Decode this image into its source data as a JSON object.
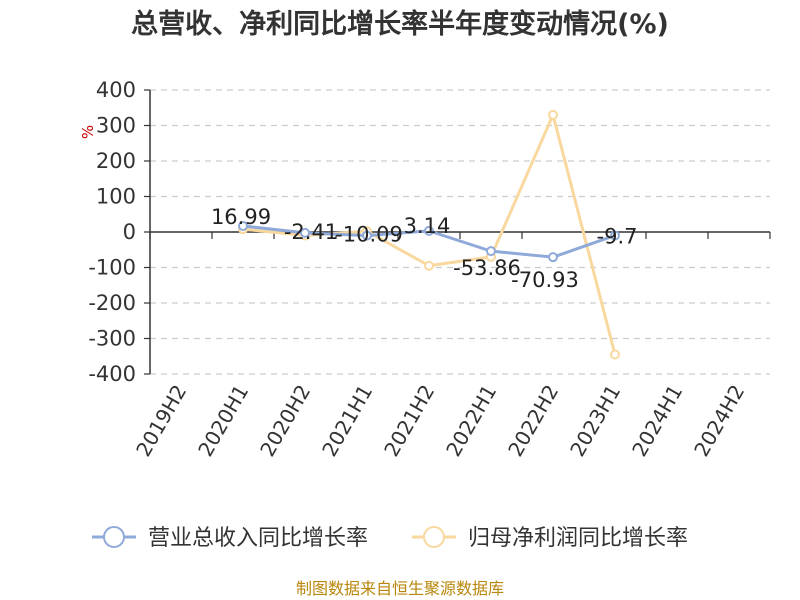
{
  "chart_data": {
    "type": "line",
    "title": "总营收、净利同比增长率半年度变动情况(%)",
    "unit_label": "%",
    "categories": [
      "2019H2",
      "2020H1",
      "2020H2",
      "2021H1",
      "2021H2",
      "2022H1",
      "2022H2",
      "2023H1",
      "2024H1",
      "2024H2"
    ],
    "ylim": [
      -400,
      400
    ],
    "yticks": [
      400,
      300,
      200,
      100,
      0,
      -100,
      -200,
      -300,
      -400
    ],
    "grid": true,
    "legend_position": "bottom",
    "series": [
      {
        "name": "营业总收入同比增长率",
        "color": "#8fa9d9",
        "values": [
          null,
          16.99,
          -2.41,
          -10.09,
          3.14,
          -53.86,
          -70.93,
          -9.7,
          null,
          null
        ],
        "labels": [
          null,
          "16.99",
          "-2.41",
          "-10.09",
          "3.14",
          "-53.86",
          "-70.93",
          "-9.7",
          null,
          null
        ]
      },
      {
        "name": "归母净利润同比增长率",
        "color": "#f9d89f",
        "values": [
          null,
          8,
          -10,
          2,
          -95,
          -70,
          330,
          -345,
          null,
          null
        ],
        "labels": [
          null,
          null,
          null,
          null,
          null,
          null,
          null,
          null,
          null,
          null
        ]
      }
    ]
  },
  "source": "制图数据来自恒生聚源数据库"
}
